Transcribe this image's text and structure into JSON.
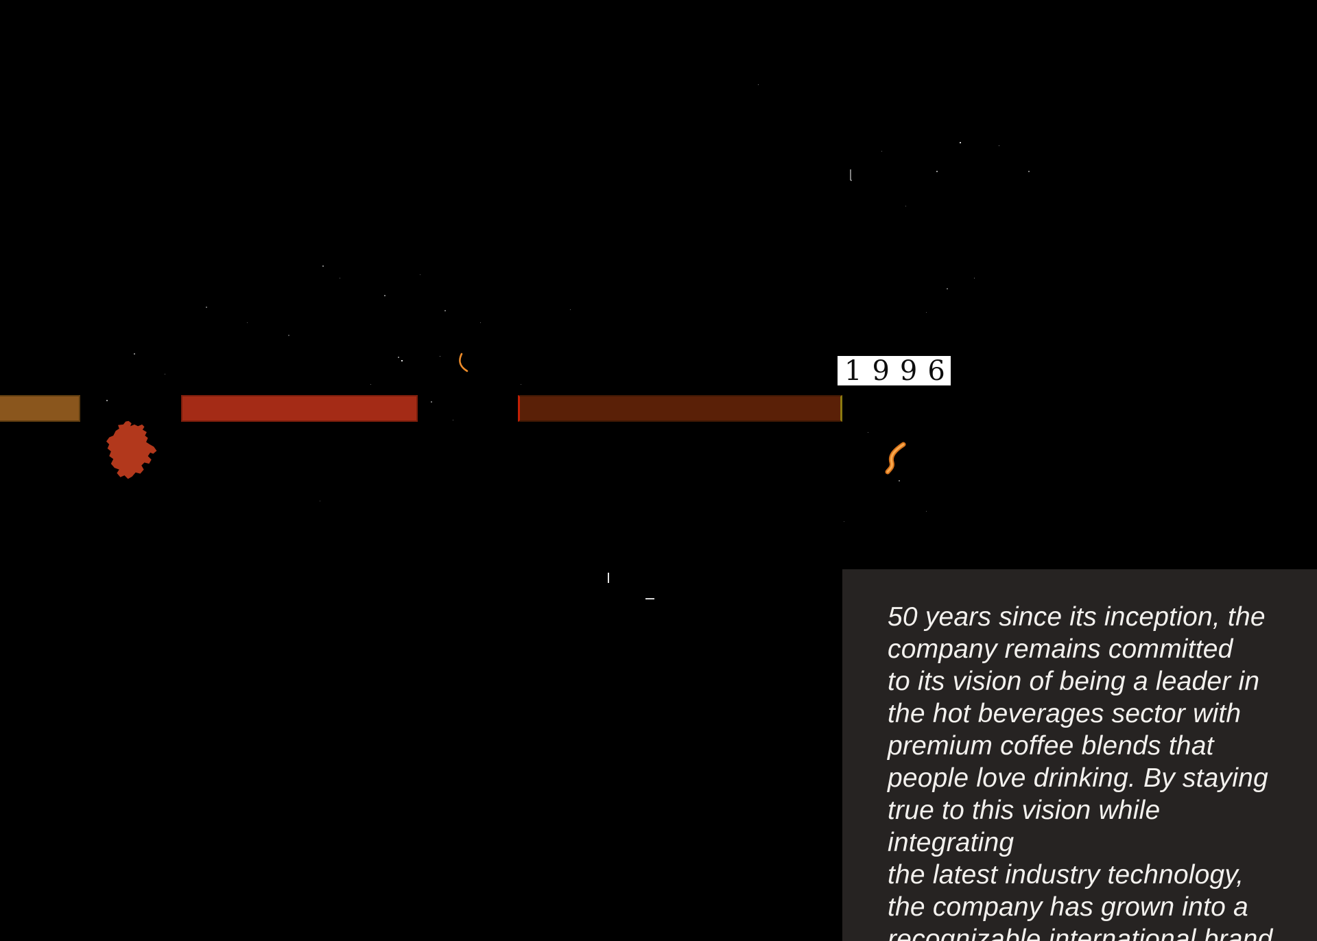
{
  "infographic": {
    "background_color": "#000000",
    "timeline": {
      "segments": [
        {
          "name": "timeline-segment-1",
          "fill": "#8a561d",
          "border": "#5e3c10"
        },
        {
          "name": "timeline-segment-2",
          "fill": "#a42b16",
          "border": "#7c1e0c"
        },
        {
          "name": "timeline-segment-3",
          "fill": "#5a2007",
          "border_left": "#c12005",
          "border_right": "#8c7a10"
        }
      ],
      "year_label": "1996",
      "year_label_bg": "#ffffff",
      "year_label_color": "#0d0d0d"
    },
    "germany_map_color": "#b2381c",
    "steam_small_color": "#ee8c2a",
    "steam_large_outer_color": "#d9731a",
    "steam_large_inner_color": "#f8a94e",
    "quote_panel": {
      "background_color": "#262322",
      "text_color": "#f3f1ee",
      "text": "50 years since its inception, the\ncompany remains committed\nto its vision of being a leader in\nthe hot beverages sector with\npremium coffee blends that\npeople love drinking. By staying\ntrue to this vision while integrating\nthe latest industry technology,\nthe company has grown into a\nrecognizable international brand."
    }
  }
}
